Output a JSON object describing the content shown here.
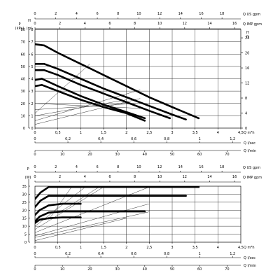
{
  "chart_data": [
    {
      "type": "line",
      "name_hint": "head",
      "x_unit": "Q m³h",
      "xlim": [
        0,
        4.5
      ],
      "x_ticks": [
        "0",
        "0,5",
        "1",
        "1,5",
        "2",
        "2,5",
        "3",
        "3,5",
        "4",
        "4,5"
      ],
      "y_left_title": "P",
      "y_left_unit": "(kPa)",
      "y_left_ticks": [
        "0",
        "10",
        "20",
        "30",
        "40",
        "50",
        "60",
        "70",
        "80"
      ],
      "y_left_lim": [
        0,
        80
      ],
      "y_mid_title": "H",
      "y_mid_unit": "(m)",
      "y_mid_ticks": [
        "0",
        "1",
        "2",
        "3",
        "4",
        "5",
        "6",
        "7",
        "8"
      ],
      "y_right_title": "H",
      "y_right_unit": "ft",
      "y_right_ticks": [
        "0",
        "4",
        "8",
        "12",
        "16",
        "20",
        "24"
      ],
      "top_axes": [
        {
          "unit": "Q US gpm",
          "ticks": [
            "0",
            "2",
            "4",
            "6",
            "8",
            "10",
            "12",
            "14",
            "16",
            "18"
          ],
          "max": 19.81
        },
        {
          "unit": "Q IMP gpm",
          "ticks": [
            "0",
            "2",
            "4",
            "6",
            "8",
            "10",
            "12",
            "14",
            "16"
          ],
          "max": 16.5
        }
      ],
      "bottom_axes": [
        {
          "unit": "Q l/sec",
          "ticks": [
            "0",
            "0,2",
            "0,4",
            "0,6",
            "0,8",
            "1",
            "1,2"
          ],
          "max": 1.25
        },
        {
          "unit": "Q l/min",
          "ticks": [
            "0",
            "10",
            "20",
            "30",
            "40",
            "50",
            "60",
            "70"
          ],
          "max": 75
        }
      ],
      "series": [
        {
          "points": [
            [
              0,
              6.8
            ],
            [
              0.2,
              6.7
            ],
            [
              0.5,
              6.1
            ],
            [
              1,
              5.2
            ],
            [
              1.5,
              4.3
            ],
            [
              2,
              3.4
            ],
            [
              2.5,
              2.5
            ],
            [
              3,
              1.7
            ],
            [
              3.58,
              0.8
            ]
          ]
        },
        {
          "points": [
            [
              0,
              5.2
            ],
            [
              0.2,
              5.2
            ],
            [
              0.5,
              4.8
            ],
            [
              1,
              4.0
            ],
            [
              1.5,
              3.2
            ],
            [
              2,
              2.5
            ],
            [
              2.5,
              1.8
            ],
            [
              3,
              1.1
            ],
            [
              3.3,
              0.7
            ]
          ]
        },
        {
          "points": [
            [
              0,
              4.7
            ],
            [
              0.2,
              4.7
            ],
            [
              0.5,
              4.3
            ],
            [
              1,
              3.5
            ],
            [
              1.5,
              2.8
            ],
            [
              2,
              2.1
            ],
            [
              2.5,
              1.4
            ],
            [
              2.95,
              0.8
            ]
          ]
        },
        {
          "points": [
            [
              0,
              3.9
            ],
            [
              0.15,
              4.0
            ],
            [
              0.5,
              3.4
            ],
            [
              1,
              2.6
            ],
            [
              1.5,
              1.9
            ],
            [
              2,
              1.3
            ],
            [
              2.4,
              0.8
            ]
          ]
        },
        {
          "points": [
            [
              0,
              3.4
            ],
            [
              0.15,
              3.5
            ],
            [
              0.5,
              3.0
            ],
            [
              1,
              2.3
            ],
            [
              1.5,
              1.7
            ],
            [
              2,
              1.2
            ],
            [
              2.4,
              0.6
            ]
          ]
        }
      ],
      "thin_series": [
        {
          "points": [
            [
              0,
              0.3
            ],
            [
              2.3,
              2.4
            ]
          ]
        },
        {
          "points": [
            [
              0,
              0.6
            ],
            [
              2.3,
              3.1
            ]
          ]
        },
        {
          "points": [
            [
              0,
              1.0
            ],
            [
              2.0,
              2.3
            ]
          ]
        },
        {
          "points": [
            [
              0,
              1.5
            ],
            [
              2.2,
              2.0
            ]
          ]
        },
        {
          "points": [
            [
              0,
              2.0
            ],
            [
              2.3,
              1.6
            ]
          ]
        },
        {
          "points": [
            [
              0,
              1.2
            ],
            [
              1.2,
              5.2
            ]
          ]
        }
      ]
    },
    {
      "type": "line",
      "name_hint": "power",
      "x_unit": "Q m³h",
      "xlim": [
        0,
        4.5
      ],
      "x_ticks": [
        "0",
        "0,5",
        "1",
        "1,5",
        "2",
        "2,5",
        "3",
        "3,5",
        "4",
        "4,5"
      ],
      "y_title": "P",
      "y_unit": "(W)",
      "y_ticks": [
        "0",
        "5",
        "10",
        "15",
        "20",
        "25",
        "30",
        "35"
      ],
      "ylim": [
        0,
        35
      ],
      "top_axes": [
        {
          "unit": "Q US gpm",
          "ticks": [
            "0",
            "2",
            "4",
            "6",
            "8",
            "10",
            "12",
            "14",
            "16",
            "18"
          ],
          "max": 19.81
        },
        {
          "unit": "Q IMP gpm",
          "ticks": [
            "0",
            "2",
            "4",
            "6",
            "8",
            "10",
            "12",
            "14",
            "16"
          ],
          "max": 16.5
        }
      ],
      "bottom_axes": [
        {
          "unit": "Q l/sec",
          "ticks": [
            "0",
            "0,2",
            "0,4",
            "0,6",
            "0,8",
            "1",
            "1,2"
          ],
          "max": 1.25
        },
        {
          "unit": "Q l/min",
          "ticks": [
            "0",
            "10",
            "20",
            "30",
            "40",
            "50",
            "60",
            "70"
          ],
          "max": 75
        }
      ],
      "series": [
        {
          "points": [
            [
              0,
              27
            ],
            [
              0.12,
              31
            ],
            [
              0.3,
              34.5
            ],
            [
              3.58,
              34.5
            ]
          ]
        },
        {
          "points": [
            [
              0,
              22
            ],
            [
              0.12,
              26
            ],
            [
              0.3,
              29
            ],
            [
              3.3,
              29
            ]
          ]
        },
        {
          "points": [
            [
              0,
              17
            ],
            [
              0.1,
              20
            ],
            [
              0.3,
              23
            ],
            [
              0.6,
              24
            ],
            [
              1,
              24
            ]
          ]
        },
        {
          "points": [
            [
              0,
              13
            ],
            [
              0.1,
              16
            ],
            [
              0.3,
              18.5
            ],
            [
              0.6,
              19.2
            ],
            [
              2.4,
              19.2
            ]
          ]
        },
        {
          "points": [
            [
              0,
              12
            ],
            [
              0.1,
              14
            ],
            [
              0.3,
              15
            ],
            [
              0.6,
              15.5
            ],
            [
              1,
              15.5
            ]
          ]
        }
      ],
      "thin_series": [
        {
          "points": [
            [
              0,
              6
            ],
            [
              2.5,
              34.5
            ]
          ]
        },
        {
          "points": [
            [
              0,
              8
            ],
            [
              1.5,
              34.5
            ]
          ]
        },
        {
          "points": [
            [
              0,
              10
            ],
            [
              1.1,
              34.5
            ]
          ]
        },
        {
          "points": [
            [
              0,
              4
            ],
            [
              2.5,
              24
            ]
          ]
        },
        {
          "points": [
            [
              0,
              3
            ],
            [
              2.5,
              19
            ]
          ]
        },
        {
          "points": [
            [
              0,
              1
            ],
            [
              2.0,
              15
            ]
          ]
        },
        {
          "points": [
            [
              0.5,
              18
            ],
            [
              1.4,
              34.5
            ]
          ]
        },
        {
          "points": [
            [
              0.3,
              14
            ],
            [
              0.8,
              34.5
            ]
          ]
        }
      ]
    }
  ]
}
